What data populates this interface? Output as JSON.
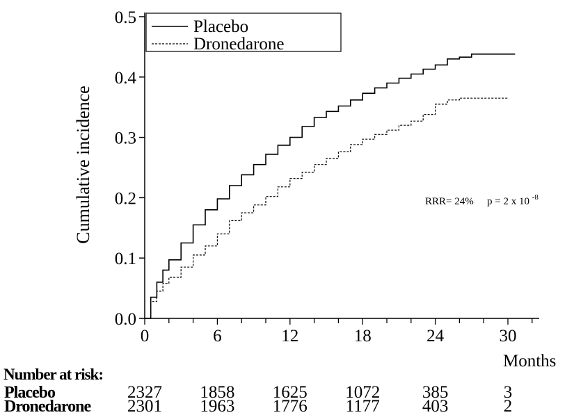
{
  "chart_data": {
    "type": "line",
    "title": "",
    "xlabel": "Months",
    "ylabel": "Cumulative incidence",
    "xlim": [
      0,
      32
    ],
    "ylim": [
      0,
      0.5
    ],
    "x_ticks": [
      "0",
      "6",
      "12",
      "18",
      "24",
      "30"
    ],
    "x_tick_values": [
      0,
      6,
      12,
      18,
      24,
      30
    ],
    "y_ticks": [
      "0.0",
      "0.1",
      "0.2",
      "0.3",
      "0.4",
      "0.5"
    ],
    "y_tick_values": [
      0,
      0.1,
      0.2,
      0.3,
      0.4,
      0.5
    ],
    "grid": false,
    "legend_position": "top-left",
    "series": [
      {
        "name": "Placebo",
        "style": "solid",
        "x": [
          0,
          0.5,
          1,
          1.5,
          2,
          3,
          4,
          5,
          6,
          7,
          8,
          9,
          10,
          11,
          12,
          13,
          14,
          15,
          16,
          17,
          18,
          19,
          20,
          21,
          22,
          23,
          24,
          25,
          26,
          27,
          28,
          29,
          30,
          30.6
        ],
        "y": [
          0.0,
          0.035,
          0.06,
          0.08,
          0.097,
          0.125,
          0.155,
          0.18,
          0.198,
          0.22,
          0.238,
          0.255,
          0.272,
          0.287,
          0.3,
          0.318,
          0.333,
          0.343,
          0.352,
          0.362,
          0.373,
          0.382,
          0.39,
          0.398,
          0.405,
          0.413,
          0.42,
          0.43,
          0.433,
          0.438,
          0.438,
          0.438,
          0.438,
          0.438
        ]
      },
      {
        "name": "Dronedarone",
        "style": "dashed",
        "x": [
          0,
          0.5,
          1,
          1.5,
          2,
          3,
          4,
          5,
          6,
          7,
          8,
          9,
          10,
          11,
          12,
          13,
          14,
          15,
          16,
          17,
          18,
          19,
          20,
          21,
          22,
          23,
          24,
          25,
          26,
          27,
          28,
          29,
          30
        ],
        "y": [
          0.0,
          0.028,
          0.045,
          0.058,
          0.068,
          0.085,
          0.105,
          0.12,
          0.14,
          0.162,
          0.175,
          0.188,
          0.202,
          0.218,
          0.232,
          0.242,
          0.255,
          0.265,
          0.276,
          0.288,
          0.297,
          0.305,
          0.312,
          0.32,
          0.327,
          0.338,
          0.355,
          0.362,
          0.365,
          0.365,
          0.365,
          0.365,
          0.365
        ]
      }
    ],
    "annotation": {
      "rrr": "RRR= 24%",
      "p_text": "p = 2 x 10",
      "p_exp": "-8"
    }
  },
  "risk_table": {
    "heading": "Number at risk:",
    "rows": [
      {
        "label": "Placebo",
        "values": [
          "2327",
          "1858",
          "1625",
          "1072",
          "385",
          "3"
        ]
      },
      {
        "label": "Dronedarone",
        "values": [
          "2301",
          "1963",
          "1776",
          "1177",
          "403",
          "2"
        ]
      }
    ]
  }
}
